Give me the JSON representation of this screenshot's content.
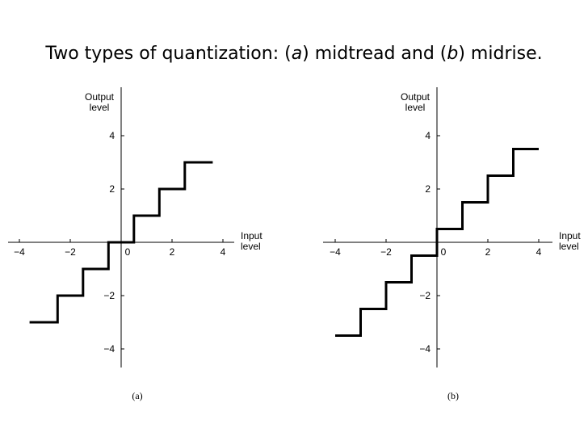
{
  "title": {
    "prefix": "Two types of quantization: (",
    "a": "a",
    "middle": ") midtread and (",
    "b": "b",
    "suffix": ") midrise."
  },
  "chart_data": [
    {
      "type": "line",
      "step": true,
      "panel_label": "(a)",
      "xlabel": [
        "Input",
        "level"
      ],
      "ylabel": [
        "Output",
        "level"
      ],
      "x_ticks": [
        -4,
        -2,
        0,
        2,
        4
      ],
      "x_tick_labels": [
        "−4",
        "−2",
        "0",
        "2",
        "4"
      ],
      "y_ticks": [
        -4,
        -2,
        2,
        4
      ],
      "y_tick_labels": [
        "−4",
        "−2",
        "2",
        "4"
      ],
      "xlim": [
        -4.6,
        4.6
      ],
      "ylim": [
        -4.8,
        4.8
      ],
      "grid": false,
      "x": [
        -3.0,
        -2.0,
        -2.0,
        -1.0,
        -1.0,
        0.0,
        0.0,
        1.0,
        1.0,
        2.0,
        2.0,
        3.0,
        3.0
      ],
      "y": [
        -3.0,
        -3.0,
        -2.0,
        -2.0,
        -1.0,
        -1.0,
        0.0,
        0.0,
        1.0,
        1.0,
        2.0,
        2.0,
        3.0
      ],
      "x_data": [
        -3.6,
        -2.5,
        -2.5,
        -1.5,
        -1.5,
        -0.5,
        -0.5,
        0.5,
        0.5,
        1.5,
        1.5,
        2.5,
        2.5,
        3.6
      ],
      "y_data": [
        -3.0,
        -3.0,
        -2.0,
        -2.0,
        -1.0,
        -1.0,
        0.0,
        0.0,
        1.0,
        1.0,
        2.0,
        2.0,
        3.0,
        3.0
      ]
    },
    {
      "type": "line",
      "step": true,
      "panel_label": "(b)",
      "xlabel": [
        "Input",
        "level"
      ],
      "ylabel": [
        "Output",
        "level"
      ],
      "x_ticks": [
        -4,
        -2,
        0,
        2,
        4
      ],
      "x_tick_labels": [
        "−4",
        "−2",
        "0",
        "2",
        "4"
      ],
      "y_ticks": [
        -4,
        -2,
        2,
        4
      ],
      "y_tick_labels": [
        "−4",
        "−2",
        "2",
        "4"
      ],
      "xlim": [
        -4.6,
        4.6
      ],
      "ylim": [
        -4.8,
        4.8
      ],
      "grid": false,
      "x_data": [
        -4.0,
        -3.0,
        -3.0,
        -2.0,
        -2.0,
        -1.0,
        -1.0,
        0.0,
        0.0,
        1.0,
        1.0,
        2.0,
        2.0,
        3.0,
        3.0,
        4.0
      ],
      "y_data": [
        -3.5,
        -3.5,
        -2.5,
        -2.5,
        -1.5,
        -1.5,
        -0.5,
        -0.5,
        0.5,
        0.5,
        1.5,
        1.5,
        2.5,
        2.5,
        3.5,
        3.5
      ]
    }
  ]
}
